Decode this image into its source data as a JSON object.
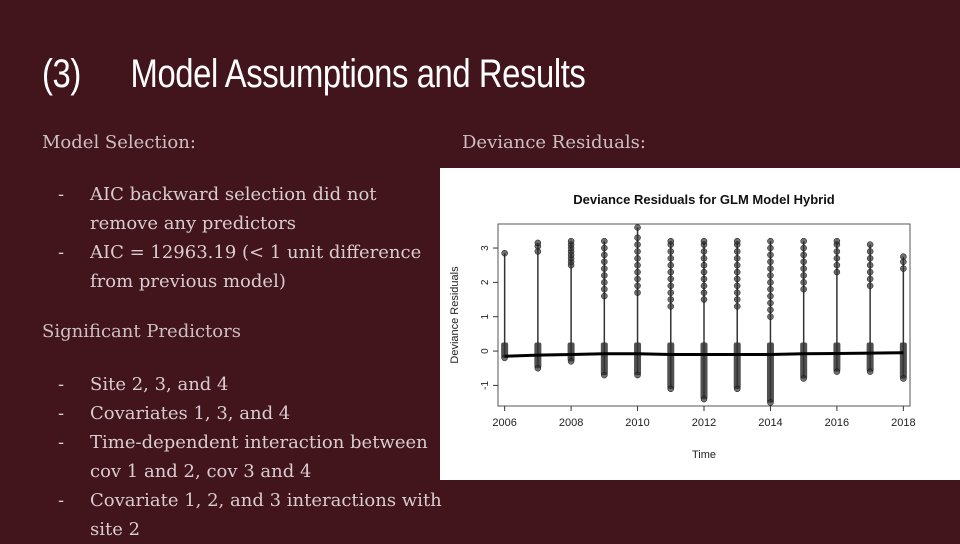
{
  "slide": {
    "title_num": "(3)",
    "title_text": "Model Assumptions and Results",
    "left_section_1": "Model Selection:",
    "bullets_1": [
      "AIC backward selection did not remove any predictors",
      "AIC = 12963.19 (< 1 unit difference from previous model)"
    ],
    "left_section_2": "Significant Predictors",
    "bullets_2": [
      "Site 2, 3, and 4",
      "Covariates 1, 3, and 4",
      "Time-dependent interaction between cov 1 and 2, cov 3 and 4",
      "Covariate 1, 2, and 3 interactions with site 2"
    ],
    "right_section": "Deviance Residuals:"
  },
  "chart_data": {
    "type": "scatter",
    "title": "Deviance Residuals for GLM Model Hybrid",
    "xlabel": "Time",
    "ylabel": "Deviance Residuals",
    "xlim": [
      2005.8,
      2018.2
    ],
    "ylim": [
      -1.6,
      3.7
    ],
    "x_ticks": [
      2006,
      2008,
      2010,
      2012,
      2014,
      2016,
      2018
    ],
    "y_ticks": [
      -1,
      0,
      1,
      2,
      3
    ],
    "grid": false,
    "point_color": "#333333",
    "columns": [
      {
        "x": 2006,
        "min": -0.2,
        "max": 2.85,
        "upper": [
          2.85
        ]
      },
      {
        "x": 2007,
        "min": -0.5,
        "max": 3.15,
        "upper": [
          2.9,
          3.05,
          3.15
        ]
      },
      {
        "x": 2008,
        "min": -0.3,
        "max": 3.2,
        "upper": [
          2.5,
          2.6,
          2.7,
          2.8,
          2.9,
          3.0,
          3.1,
          3.2
        ]
      },
      {
        "x": 2009,
        "min": -0.7,
        "max": 3.2,
        "upper": [
          1.6,
          1.8,
          2.0,
          2.2,
          2.4,
          2.6,
          2.8,
          3.0,
          3.2
        ]
      },
      {
        "x": 2010,
        "min": -0.7,
        "max": 3.6,
        "upper": [
          1.7,
          1.9,
          2.1,
          2.3,
          2.5,
          2.7,
          2.9,
          3.1,
          3.3,
          3.6
        ]
      },
      {
        "x": 2011,
        "min": -1.1,
        "max": 3.2,
        "upper": [
          1.3,
          1.5,
          1.7,
          1.9,
          2.1,
          2.3,
          2.5,
          2.7,
          2.9,
          3.1,
          3.2
        ]
      },
      {
        "x": 2012,
        "min": -1.4,
        "max": 3.2,
        "upper": [
          1.5,
          1.7,
          1.9,
          2.1,
          2.3,
          2.5,
          2.7,
          2.9,
          3.1,
          3.2
        ]
      },
      {
        "x": 2013,
        "min": -1.1,
        "max": 3.2,
        "upper": [
          1.3,
          1.5,
          1.7,
          1.9,
          2.1,
          2.3,
          2.5,
          2.7,
          2.9,
          3.1,
          3.2
        ]
      },
      {
        "x": 2014,
        "min": -1.5,
        "max": 3.2,
        "upper": [
          1.0,
          1.2,
          1.4,
          1.6,
          1.8,
          2.0,
          2.2,
          2.4,
          2.6,
          2.8,
          3.0,
          3.2
        ]
      },
      {
        "x": 2015,
        "min": -0.8,
        "max": 3.2,
        "upper": [
          1.8,
          2.0,
          2.2,
          2.4,
          2.6,
          2.8,
          3.0,
          3.2
        ]
      },
      {
        "x": 2016,
        "min": -0.6,
        "max": 3.2,
        "upper": [
          2.3,
          2.5,
          2.7,
          2.9,
          3.1,
          3.2
        ]
      },
      {
        "x": 2017,
        "min": -0.6,
        "max": 3.1,
        "upper": [
          1.9,
          2.1,
          2.3,
          2.5,
          2.7,
          2.9,
          3.1
        ]
      },
      {
        "x": 2018,
        "min": -0.8,
        "max": 2.75,
        "upper": [
          2.4,
          2.6,
          2.75
        ]
      }
    ],
    "trend": [
      [
        2006,
        -0.15
      ],
      [
        2007,
        -0.12
      ],
      [
        2008,
        -0.1
      ],
      [
        2009,
        -0.08
      ],
      [
        2010,
        -0.08
      ],
      [
        2011,
        -0.1
      ],
      [
        2012,
        -0.1
      ],
      [
        2013,
        -0.1
      ],
      [
        2014,
        -0.1
      ],
      [
        2015,
        -0.08
      ],
      [
        2016,
        -0.07
      ],
      [
        2017,
        -0.06
      ],
      [
        2018,
        -0.05
      ]
    ]
  }
}
